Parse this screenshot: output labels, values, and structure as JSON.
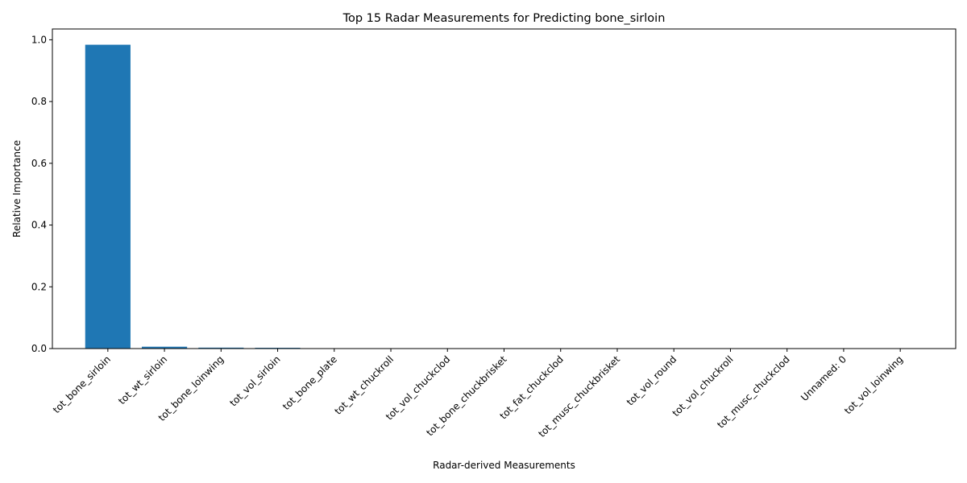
{
  "chart_data": {
    "type": "bar",
    "title": "Top 15 Radar Measurements for Predicting bone_sirloin",
    "xlabel": "Radar-derived Measurements",
    "ylabel": "Relative Importance",
    "ylim": [
      0,
      1.035
    ],
    "yticks": [
      0.0,
      0.2,
      0.4,
      0.6,
      0.8,
      1.0
    ],
    "ytick_labels": [
      "0.0",
      "0.2",
      "0.4",
      "0.6",
      "0.8",
      "1.0"
    ],
    "grid": false,
    "bar_color": "#1f77b4",
    "categories": [
      "tot_bone_sirloin",
      "tot_wt_sirloin",
      "tot_bone_loinwing",
      "tot_vol_sirloin",
      "tot_bone_plate",
      "tot_wt_chuckroll",
      "tot_vol_chuckclod",
      "tot_bone_chuckbrisket",
      "tot_fat_chuckclod",
      "tot_musc_chuckbrisket",
      "tot_vol_round",
      "tot_vol_chuckroll",
      "tot_musc_chuckclod",
      "Unnamed: 0",
      "tot_vol_loinwing"
    ],
    "values": [
      0.984,
      0.006,
      0.003,
      0.0025,
      0.0008,
      0.0005,
      0.0004,
      0.0003,
      0.0003,
      0.0002,
      0.0002,
      0.0002,
      0.0001,
      0.0001,
      0.0001
    ]
  }
}
